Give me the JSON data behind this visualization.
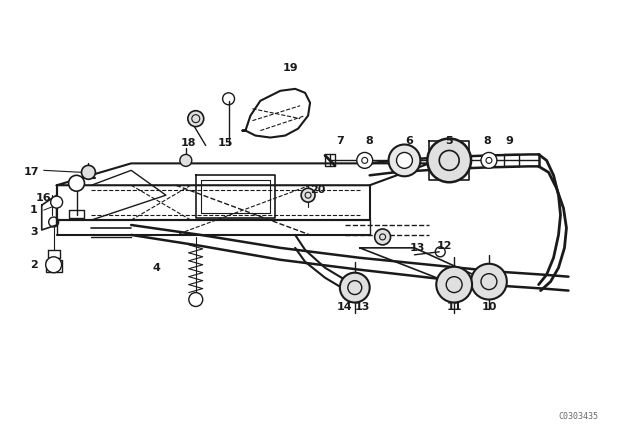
{
  "bg_color": "#ffffff",
  "line_color": "#1a1a1a",
  "figure_width": 6.4,
  "figure_height": 4.48,
  "dpi": 100,
  "watermark": "C0303435"
}
